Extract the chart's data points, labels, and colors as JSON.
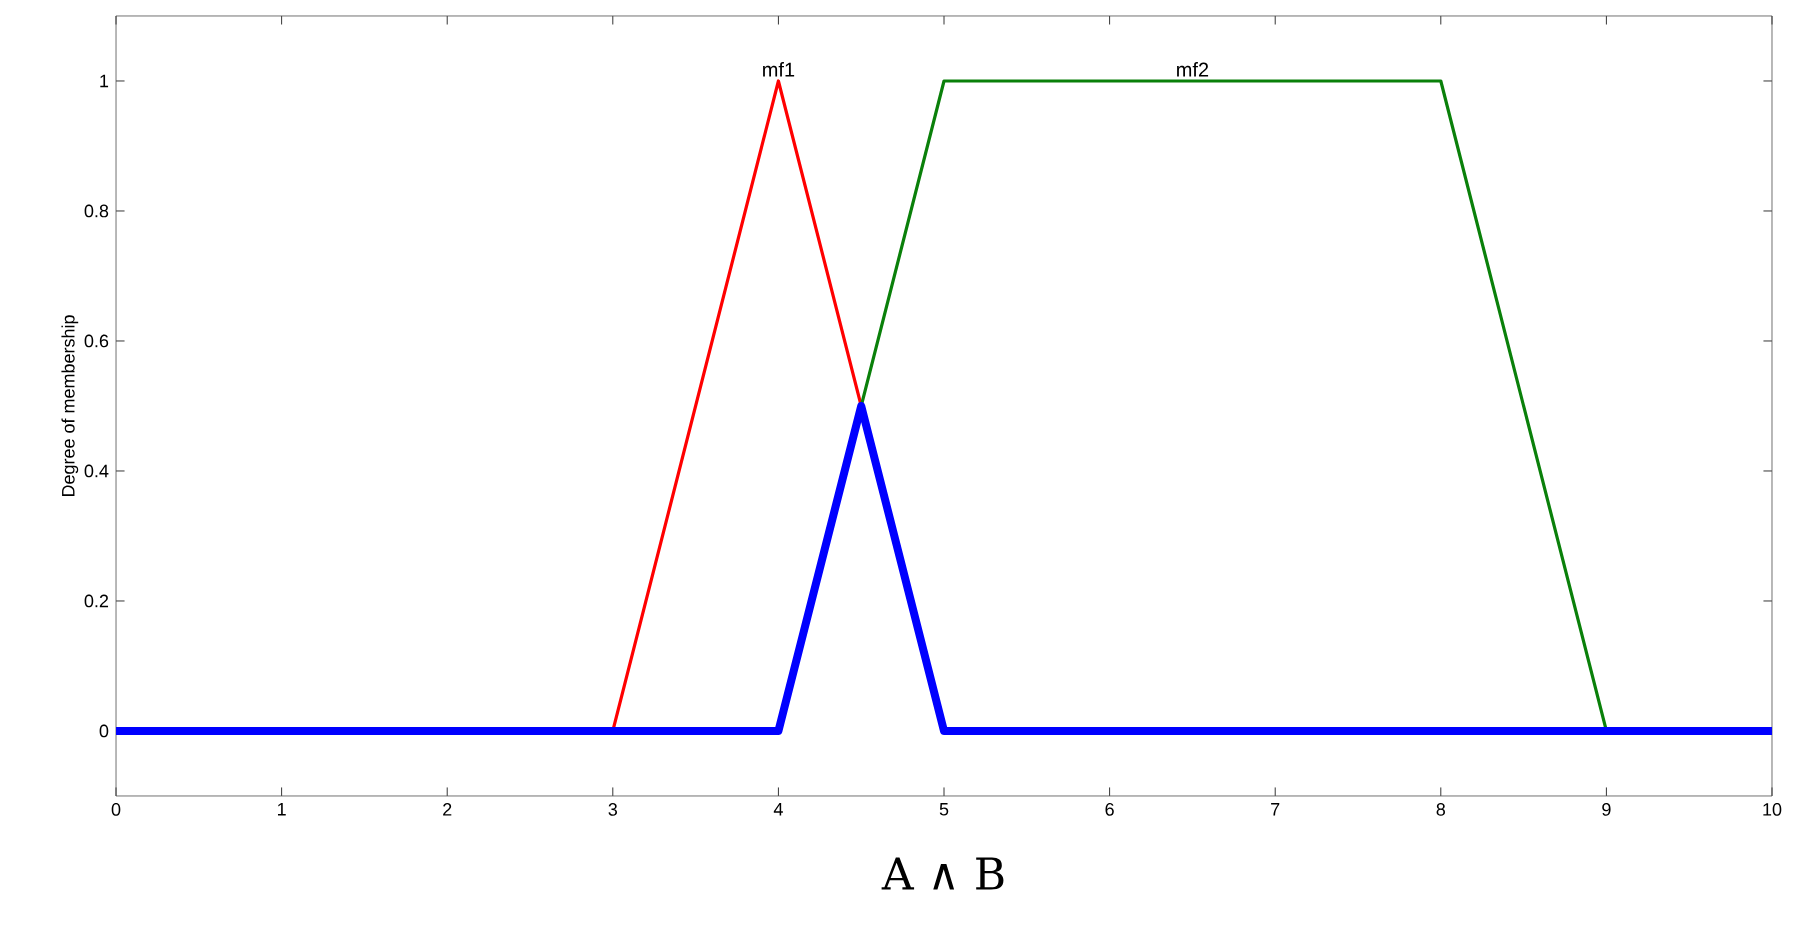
{
  "chart_data": {
    "type": "line",
    "xlabel": "A ∧ B",
    "ylabel": "Degree of membership",
    "xlim": [
      0,
      10
    ],
    "ylim": [
      -0.1,
      1.1
    ],
    "xticks": [
      0,
      1,
      2,
      3,
      4,
      5,
      6,
      7,
      8,
      9,
      10
    ],
    "yticks": [
      0,
      0.2,
      0.4,
      0.6,
      0.8,
      1
    ],
    "grid": false,
    "marker": "none",
    "line_style": "solid",
    "annotations": [
      {
        "text": "mf1",
        "x": 4,
        "y": 1
      },
      {
        "text": "mf2",
        "x": 6.5,
        "y": 1
      }
    ],
    "series": [
      {
        "color": "#ff0000",
        "x": [
          3,
          4,
          5
        ],
        "values": [
          0,
          1,
          0
        ]
      },
      {
        "color": "#0a800a",
        "x": [
          4,
          5,
          8,
          9
        ],
        "values": [
          0,
          1,
          1,
          0
        ]
      },
      {
        "color": "#0000ff",
        "x": [
          0,
          4,
          4.5,
          5,
          10
        ],
        "values": [
          0,
          0,
          0.5,
          0,
          0
        ]
      }
    ]
  }
}
